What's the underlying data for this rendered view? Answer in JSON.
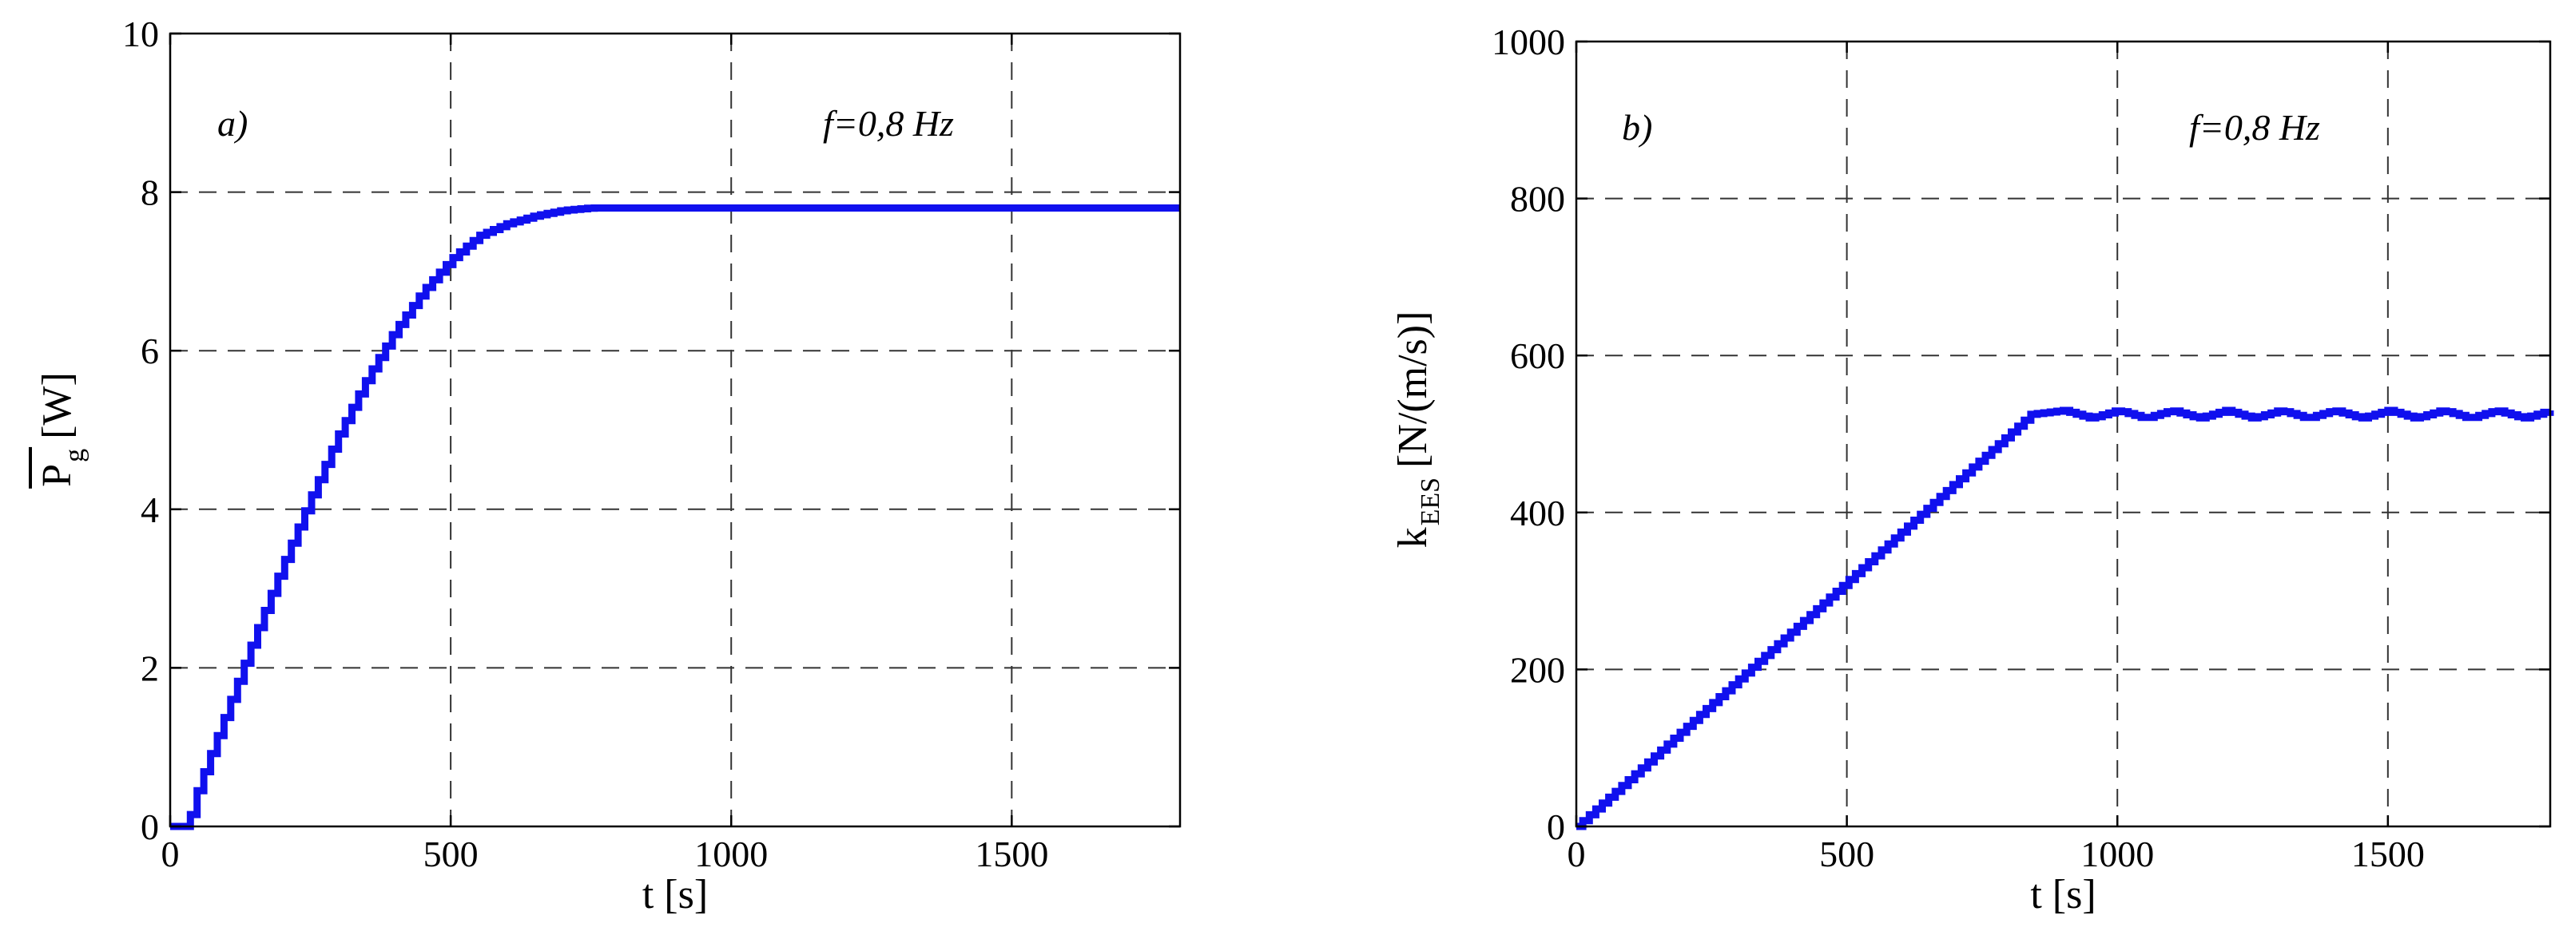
{
  "chart_data": [
    {
      "type": "line",
      "ylabel_symbol": "P",
      "ylabel_subscript": "g",
      "ylabel_unit": "[W]",
      "xlabel": "t [s]",
      "panel_label": "a)",
      "annotation": "f=0,8 Hz",
      "xlim": [
        0,
        1800
      ],
      "ylim": [
        0,
        10
      ],
      "xticks": [
        0,
        500,
        1000,
        1500
      ],
      "yticks": [
        0,
        2,
        4,
        6,
        8,
        10
      ],
      "grid": true,
      "color": "#1010ee",
      "x": [
        0,
        30,
        50,
        100,
        150,
        200,
        250,
        300,
        350,
        400,
        450,
        500,
        550,
        600,
        650,
        700,
        750,
        800,
        850,
        900,
        1000,
        1100,
        1200,
        1300,
        1400,
        1500,
        1600,
        1700,
        1800
      ],
      "y": [
        0,
        0,
        0.5,
        1.45,
        2.4,
        3.3,
        4.15,
        4.95,
        5.65,
        6.25,
        6.75,
        7.15,
        7.45,
        7.6,
        7.7,
        7.77,
        7.8,
        7.8,
        7.8,
        7.8,
        7.8,
        7.8,
        7.8,
        7.8,
        7.8,
        7.8,
        7.8,
        7.8,
        7.8
      ]
    },
    {
      "type": "line",
      "ylabel_symbol": "k",
      "ylabel_subscript": "EES",
      "ylabel_unit": "[N/(m/s)]",
      "xlabel": "t [s]",
      "panel_label": "b)",
      "annotation": "f=0,8 Hz",
      "xlim": [
        0,
        1800
      ],
      "ylim": [
        0,
        1000
      ],
      "xticks": [
        0,
        500,
        1000,
        1500
      ],
      "yticks": [
        0,
        200,
        400,
        600,
        800,
        1000
      ],
      "grid": true,
      "color": "#1010ee",
      "x": [
        0,
        100,
        200,
        300,
        400,
        500,
        600,
        700,
        800,
        840,
        900,
        950,
        1000,
        1050,
        1100,
        1150,
        1200,
        1250,
        1300,
        1350,
        1400,
        1450,
        1500,
        1550,
        1600,
        1650,
        1700,
        1750,
        1800
      ],
      "y": [
        0,
        62,
        125,
        188,
        250,
        312,
        375,
        438,
        500,
        525,
        530,
        520,
        530,
        520,
        530,
        520,
        530,
        520,
        530,
        520,
        530,
        520,
        530,
        520,
        530,
        520,
        530,
        520,
        530
      ]
    }
  ]
}
